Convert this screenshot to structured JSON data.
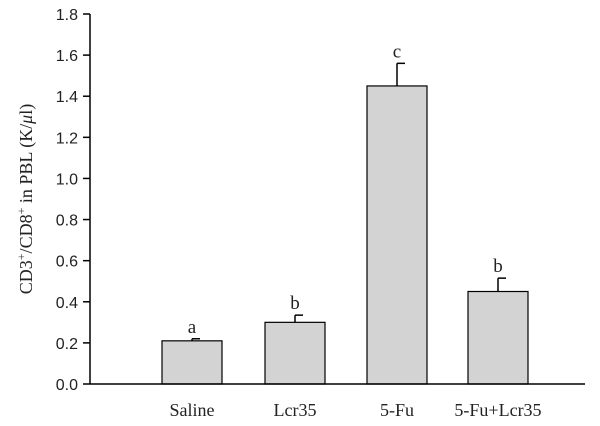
{
  "chart_data": {
    "type": "bar",
    "categories": [
      "Saline",
      "Lcr35",
      "5-Fu",
      "5-Fu+Lcr35"
    ],
    "values": [
      0.21,
      0.3,
      1.45,
      0.45
    ],
    "errors": [
      0.01,
      0.035,
      0.11,
      0.065
    ],
    "significance_labels": [
      "a",
      "b",
      "c",
      "b"
    ],
    "ylabel_parts": [
      "CD3",
      "+",
      "/CD8",
      "+",
      " in PBL (K/",
      "μ",
      "l)"
    ],
    "ylim": [
      0,
      1.8
    ],
    "yticks": [
      "0.0",
      "0.2",
      "0.4",
      "0.6",
      "0.8",
      "1.0",
      "1.2",
      "1.4",
      "1.6",
      "1.8"
    ],
    "grid": false,
    "colors": {
      "bar_fill": "#d3d3d3",
      "bar_stroke": "#000000"
    }
  }
}
